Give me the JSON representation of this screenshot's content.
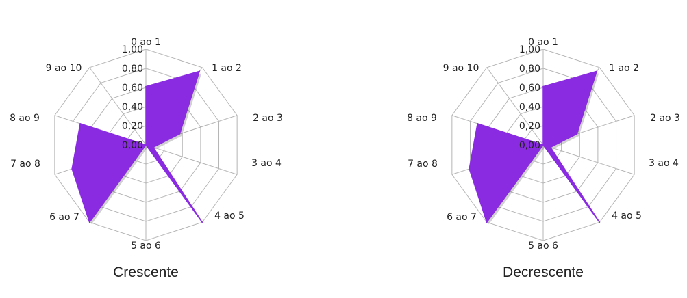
{
  "chart_data": [
    {
      "type": "radar",
      "title": "Crescente",
      "categories": [
        "0 ao 1",
        "1 ao 2",
        "2 ao 3",
        "3 ao 4",
        "4 ao 5",
        "5 ao 6",
        "6 ao 7",
        "7 ao 8",
        "8 ao 9",
        "9 ao 10"
      ],
      "series": [
        {
          "values": [
            0.61,
            0.95,
            0.37,
            0.08,
            1.0,
            0.0,
            1.0,
            0.81,
            0.72,
            0.0
          ]
        }
      ],
      "ylim": [
        0,
        1
      ],
      "ticks": [
        "0,00",
        "0,20",
        "0,40",
        "0,60",
        "0,80",
        "1,00"
      ],
      "color": "#8a2be2"
    },
    {
      "type": "radar",
      "title": "Decrescente",
      "categories": [
        "0 ao 1",
        "1 ao 2",
        "2 ao 3",
        "3 ao 4",
        "4 ao 5",
        "5 ao 6",
        "6 ao 7",
        "7 ao 8",
        "8 ao 9",
        "9 ao 10"
      ],
      "series": [
        {
          "values": [
            0.61,
            0.95,
            0.37,
            0.08,
            1.0,
            0.0,
            1.0,
            0.81,
            0.72,
            0.0
          ]
        }
      ],
      "ylim": [
        0,
        1
      ],
      "ticks": [
        "0,00",
        "0,20",
        "0,40",
        "0,60",
        "0,80",
        "1,00"
      ],
      "color": "#8a2be2"
    }
  ]
}
